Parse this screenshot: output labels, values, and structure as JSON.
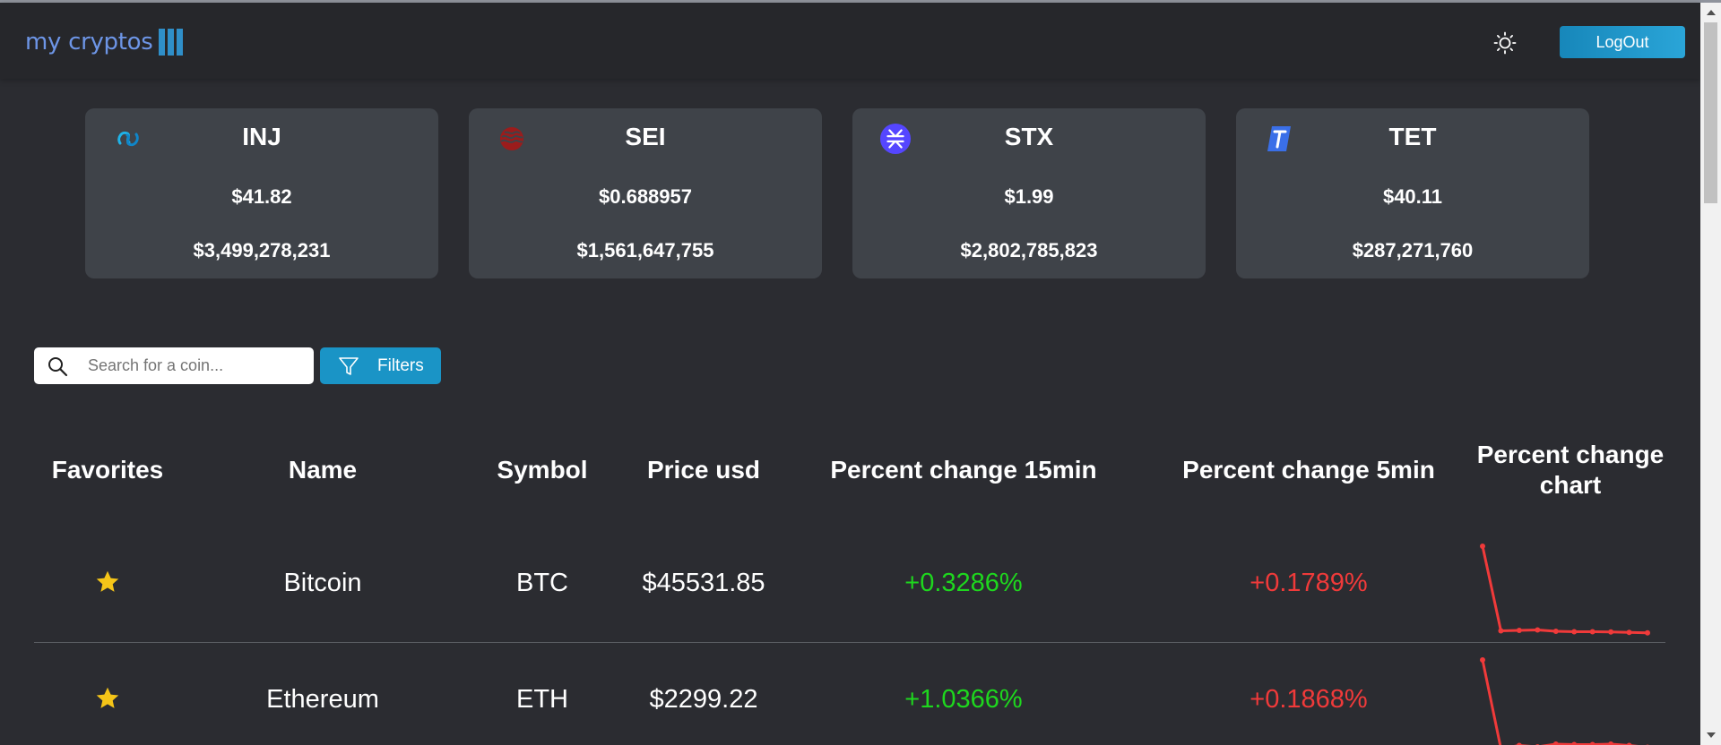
{
  "app": {
    "logo_text": "my cryptos",
    "logout_label": "LogOut",
    "colors": {
      "accent": "#1a94c6",
      "positive": "#1ed71e",
      "negative": "#f03a3a",
      "star": "#f5c518"
    }
  },
  "top_coins": [
    {
      "symbol": "INJ",
      "price": "$41.82",
      "market_cap": "$3,499,278,231",
      "icon": "injective-logo-icon"
    },
    {
      "symbol": "SEI",
      "price": "$0.688957",
      "market_cap": "$1,561,647,755",
      "icon": "sei-logo-icon"
    },
    {
      "symbol": "STX",
      "price": "$1.99",
      "market_cap": "$2,802,785,823",
      "icon": "stacks-logo-icon"
    },
    {
      "symbol": "TET",
      "price": "$40.11",
      "market_cap": "$287,271,760",
      "icon": "tectum-logo-icon"
    }
  ],
  "search": {
    "placeholder": "Search for a coin..."
  },
  "filters": {
    "label": "Filters"
  },
  "table": {
    "headers": {
      "favorites": "Favorites",
      "name": "Name",
      "symbol": "Symbol",
      "price": "Price usd",
      "change15": "Percent change 15min",
      "change5": "Percent change 5min",
      "chart_line1": "Percent change",
      "chart_line2": "chart"
    },
    "rows": [
      {
        "favorite": true,
        "name": "Bitcoin",
        "symbol": "BTC",
        "price": "$45531.85",
        "change15": "+0.3286%",
        "change5": "+0.1789%",
        "spark": [
          10,
          0.55,
          0.6,
          0.65,
          0.5,
          0.45,
          0.45,
          0.42,
          0.38,
          0.32
        ]
      },
      {
        "favorite": true,
        "name": "Ethereum",
        "symbol": "ETH",
        "price": "$2299.22",
        "change15": "+1.0366%",
        "change5": "+0.1868%",
        "spark": [
          10,
          0.1,
          0.45,
          0.3,
          0.6,
          0.55,
          0.55,
          0.6,
          0.45,
          0.25
        ]
      }
    ]
  }
}
